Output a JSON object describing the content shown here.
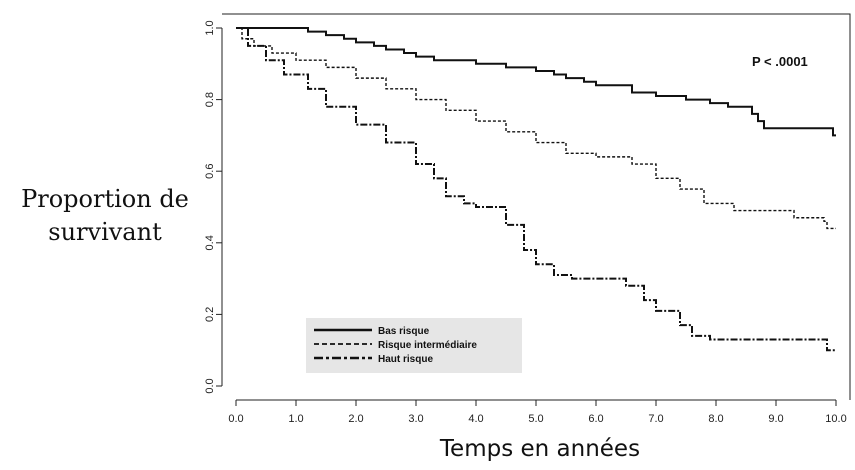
{
  "colors": {
    "curve": "#111111",
    "axis": "#222222",
    "legend_bg": "#e6e6e6"
  },
  "chart_data": {
    "type": "line",
    "title": "",
    "xlabel": "Temps en années",
    "ylabel_lines": [
      "Proportion de",
      "survivant"
    ],
    "xlim": [
      0,
      10
    ],
    "ylim": [
      0,
      1
    ],
    "x_ticks": [
      "0.0",
      "1.0",
      "2.0",
      "3.0",
      "4.0",
      "5.0",
      "6.0",
      "7.0",
      "8.0",
      "9.0",
      "10.0"
    ],
    "y_ticks": [
      "0.0",
      "0.2",
      "0.4",
      "0.6",
      "0.8",
      "1.0"
    ],
    "annotation": "P < .0001",
    "grid": false,
    "legend_position": "bottom-left",
    "series": [
      {
        "name": "Bas risque",
        "style": "solid",
        "points": [
          [
            0,
            1.0
          ],
          [
            1.0,
            1.0
          ],
          [
            1.2,
            0.99
          ],
          [
            1.5,
            0.98
          ],
          [
            1.8,
            0.97
          ],
          [
            2.0,
            0.96
          ],
          [
            2.3,
            0.95
          ],
          [
            2.5,
            0.94
          ],
          [
            2.8,
            0.93
          ],
          [
            3.0,
            0.92
          ],
          [
            3.3,
            0.91
          ],
          [
            3.8,
            0.91
          ],
          [
            4.0,
            0.9
          ],
          [
            4.5,
            0.89
          ],
          [
            5.0,
            0.88
          ],
          [
            5.3,
            0.87
          ],
          [
            5.5,
            0.86
          ],
          [
            5.8,
            0.85
          ],
          [
            6.0,
            0.84
          ],
          [
            6.6,
            0.83
          ],
          [
            6.6,
            0.82
          ],
          [
            7.0,
            0.81
          ],
          [
            7.5,
            0.8
          ],
          [
            7.9,
            0.79
          ],
          [
            8.2,
            0.78
          ],
          [
            8.6,
            0.76
          ],
          [
            8.7,
            0.74
          ],
          [
            8.8,
            0.72
          ],
          [
            9.9,
            0.72
          ],
          [
            9.95,
            0.7
          ],
          [
            10.0,
            0.7
          ]
        ]
      },
      {
        "name": "Risque intermédiaire",
        "style": "dashed",
        "points": [
          [
            0,
            1.0
          ],
          [
            0.1,
            0.97
          ],
          [
            0.3,
            0.95
          ],
          [
            0.6,
            0.93
          ],
          [
            1.0,
            0.91
          ],
          [
            1.5,
            0.89
          ],
          [
            2.0,
            0.86
          ],
          [
            2.5,
            0.83
          ],
          [
            3.0,
            0.8
          ],
          [
            3.5,
            0.77
          ],
          [
            4.0,
            0.74
          ],
          [
            4.5,
            0.71
          ],
          [
            5.0,
            0.68
          ],
          [
            5.5,
            0.65
          ],
          [
            6.0,
            0.64
          ],
          [
            6.6,
            0.62
          ],
          [
            7.0,
            0.58
          ],
          [
            7.4,
            0.55
          ],
          [
            7.8,
            0.51
          ],
          [
            8.2,
            0.51
          ],
          [
            8.3,
            0.49
          ],
          [
            9.0,
            0.49
          ],
          [
            9.3,
            0.47
          ],
          [
            9.8,
            0.46
          ],
          [
            9.85,
            0.44
          ],
          [
            10.0,
            0.44
          ]
        ]
      },
      {
        "name": "Haut risque",
        "style": "dashdot",
        "points": [
          [
            0,
            1.0
          ],
          [
            0.2,
            0.95
          ],
          [
            0.5,
            0.91
          ],
          [
            0.8,
            0.87
          ],
          [
            1.2,
            0.83
          ],
          [
            1.5,
            0.78
          ],
          [
            2.0,
            0.73
          ],
          [
            2.5,
            0.68
          ],
          [
            3.0,
            0.62
          ],
          [
            3.3,
            0.58
          ],
          [
            3.5,
            0.53
          ],
          [
            3.8,
            0.51
          ],
          [
            4.0,
            0.5
          ],
          [
            4.5,
            0.45
          ],
          [
            4.8,
            0.38
          ],
          [
            5.0,
            0.34
          ],
          [
            5.3,
            0.31
          ],
          [
            5.6,
            0.3
          ],
          [
            6.5,
            0.28
          ],
          [
            6.8,
            0.24
          ],
          [
            7.0,
            0.21
          ],
          [
            7.4,
            0.17
          ],
          [
            7.6,
            0.14
          ],
          [
            7.9,
            0.13
          ],
          [
            9.8,
            0.13
          ],
          [
            9.85,
            0.1
          ],
          [
            10.0,
            0.1
          ]
        ]
      }
    ]
  }
}
